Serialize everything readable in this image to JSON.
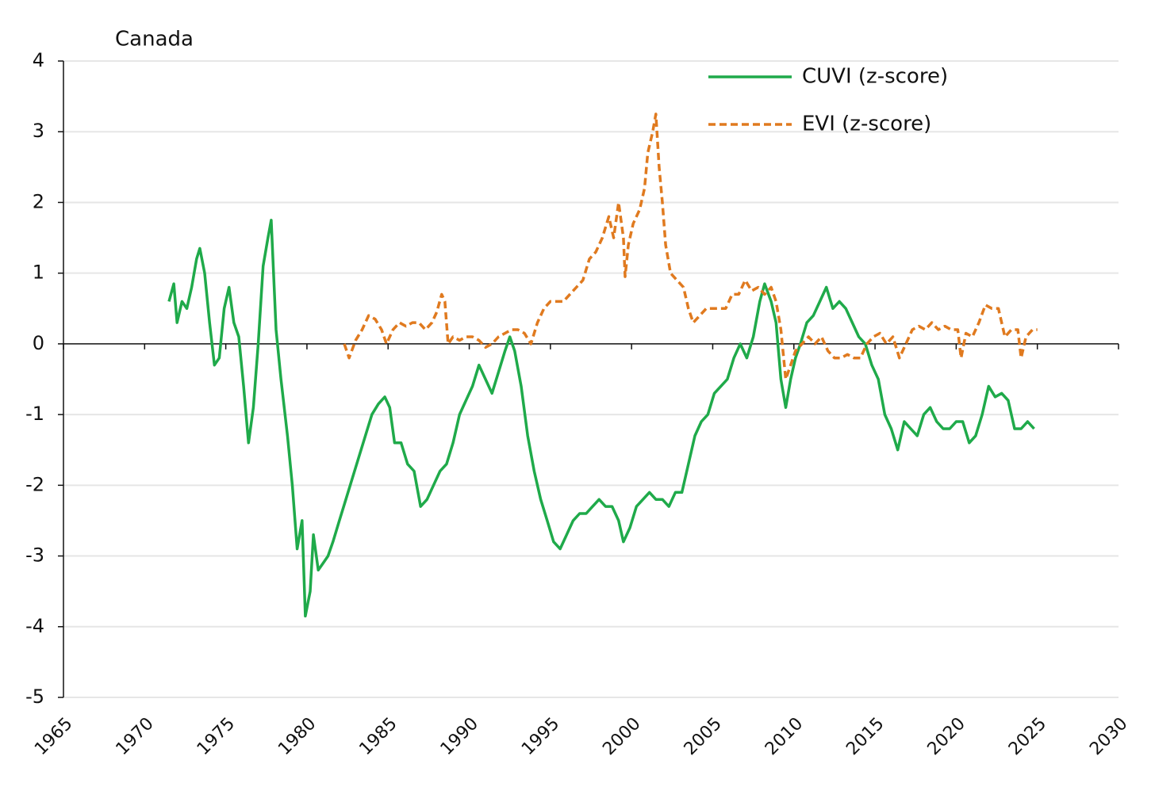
{
  "chart_data": {
    "type": "line",
    "title": "Canada",
    "xlim": [
      1965,
      2030
    ],
    "xticks": [
      1965,
      1970,
      1975,
      1980,
      1985,
      1990,
      1995,
      2000,
      2005,
      2010,
      2015,
      2020,
      2025,
      2030
    ],
    "ylim": [
      -5,
      4
    ],
    "yticks": [
      4,
      3,
      2,
      1,
      0,
      -1,
      -2,
      -3,
      -4,
      -5
    ],
    "grid": true,
    "legend": "top-right",
    "series": [
      {
        "name": "CUVI (z-score)",
        "color": "#1faa4a",
        "dash": false,
        "x": [
          1971.5,
          1971.8,
          1972.0,
          1972.3,
          1972.6,
          1972.9,
          1973.2,
          1973.4,
          1973.7,
          1974.0,
          1974.3,
          1974.6,
          1974.9,
          1975.2,
          1975.5,
          1975.8,
          1976.1,
          1976.4,
          1976.7,
          1977.0,
          1977.3,
          1977.6,
          1977.8,
          1978.1,
          1978.4,
          1978.8,
          1979.1,
          1979.4,
          1979.7,
          1979.9,
          1980.2,
          1980.4,
          1980.7,
          1981.0,
          1981.3,
          1981.6,
          1982.0,
          1982.4,
          1982.8,
          1983.2,
          1983.6,
          1984.0,
          1984.4,
          1984.8,
          1985.1,
          1985.4,
          1985.8,
          1986.2,
          1986.6,
          1987.0,
          1987.4,
          1987.8,
          1988.2,
          1988.6,
          1989.0,
          1989.4,
          1989.8,
          1990.2,
          1990.6,
          1991.0,
          1991.4,
          1991.8,
          1992.2,
          1992.5,
          1992.8,
          1993.2,
          1993.6,
          1994.0,
          1994.4,
          1994.8,
          1995.2,
          1995.6,
          1996.0,
          1996.4,
          1996.8,
          1997.2,
          1997.6,
          1998.0,
          1998.4,
          1998.8,
          1999.2,
          1999.5,
          1999.9,
          2000.3,
          2000.7,
          2001.1,
          2001.5,
          2001.9,
          2002.3,
          2002.7,
          2003.1,
          2003.5,
          2003.9,
          2004.3,
          2004.7,
          2005.1,
          2005.5,
          2005.9,
          2006.3,
          2006.7,
          2007.1,
          2007.5,
          2007.9,
          2008.2,
          2008.6,
          2008.9,
          2009.2,
          2009.5,
          2009.8,
          2010.1,
          2010.4,
          2010.8,
          2011.2,
          2011.6,
          2012.0,
          2012.4,
          2012.8,
          2013.2,
          2013.6,
          2014.0,
          2014.4,
          2014.8,
          2015.2,
          2015.6,
          2016.0,
          2016.4,
          2016.8,
          2017.2,
          2017.6,
          2018.0,
          2018.4,
          2018.8,
          2019.2,
          2019.6,
          2020.0,
          2020.4,
          2020.8,
          2021.2,
          2021.6,
          2022.0,
          2022.4,
          2022.8,
          2023.2,
          2023.6,
          2024.0,
          2024.4,
          2024.8
        ],
        "values": [
          0.6,
          0.85,
          0.3,
          0.6,
          0.5,
          0.8,
          1.2,
          1.35,
          1.0,
          0.3,
          -0.3,
          -0.2,
          0.5,
          0.8,
          0.3,
          0.1,
          -0.6,
          -1.4,
          -0.9,
          0.0,
          1.1,
          1.5,
          1.75,
          0.2,
          -0.5,
          -1.3,
          -2.0,
          -2.9,
          -2.5,
          -3.85,
          -3.5,
          -2.7,
          -3.2,
          -3.1,
          -3.0,
          -2.8,
          -2.5,
          -2.2,
          -1.9,
          -1.6,
          -1.3,
          -1.0,
          -0.85,
          -0.75,
          -0.9,
          -1.4,
          -1.4,
          -1.7,
          -1.8,
          -2.3,
          -2.2,
          -2.0,
          -1.8,
          -1.7,
          -1.4,
          -1.0,
          -0.8,
          -0.6,
          -0.3,
          -0.5,
          -0.7,
          -0.4,
          -0.1,
          0.1,
          -0.1,
          -0.6,
          -1.3,
          -1.8,
          -2.2,
          -2.5,
          -2.8,
          -2.9,
          -2.7,
          -2.5,
          -2.4,
          -2.4,
          -2.3,
          -2.2,
          -2.3,
          -2.3,
          -2.5,
          -2.8,
          -2.6,
          -2.3,
          -2.2,
          -2.1,
          -2.2,
          -2.2,
          -2.3,
          -2.1,
          -2.1,
          -1.7,
          -1.3,
          -1.1,
          -1.0,
          -0.7,
          -0.6,
          -0.5,
          -0.2,
          0.0,
          -0.2,
          0.1,
          0.6,
          0.85,
          0.6,
          0.3,
          -0.5,
          -0.9,
          -0.5,
          -0.2,
          0.0,
          0.3,
          0.4,
          0.6,
          0.8,
          0.5,
          0.6,
          0.5,
          0.3,
          0.1,
          0.0,
          -0.3,
          -0.5,
          -1.0,
          -1.2,
          -1.5,
          -1.1,
          -1.2,
          -1.3,
          -1.0,
          -0.9,
          -1.1,
          -1.2,
          -1.2,
          -1.1,
          -1.1,
          -1.4,
          -1.3,
          -1.0,
          -0.6,
          -0.75,
          -0.7,
          -0.8,
          -1.2,
          -1.2,
          -1.1,
          -1.2
        ]
      },
      {
        "name": "EVI (z-score)",
        "color": "#e07a1f",
        "dash": true,
        "x": [
          1982.3,
          1982.6,
          1983.0,
          1983.4,
          1983.8,
          1984.2,
          1984.6,
          1984.9,
          1985.3,
          1985.7,
          1986.1,
          1986.5,
          1986.9,
          1987.3,
          1987.7,
          1988.0,
          1988.3,
          1988.5,
          1988.7,
          1989.0,
          1989.4,
          1989.8,
          1990.2,
          1990.6,
          1991.0,
          1991.4,
          1991.8,
          1992.2,
          1992.6,
          1993.0,
          1993.4,
          1993.8,
          1994.2,
          1994.6,
          1995.0,
          1995.4,
          1995.8,
          1996.2,
          1996.6,
          1997.0,
          1997.4,
          1997.8,
          1998.2,
          1998.6,
          1998.9,
          1999.2,
          1999.5,
          1999.6,
          1999.8,
          2000.1,
          2000.5,
          2000.8,
          2001.0,
          2001.3,
          2001.5,
          2001.7,
          2001.9,
          2002.1,
          2002.4,
          2002.8,
          2003.2,
          2003.5,
          2003.8,
          2004.2,
          2004.6,
          2005.0,
          2005.4,
          2005.8,
          2006.2,
          2006.6,
          2007.0,
          2007.4,
          2007.8,
          2008.2,
          2008.6,
          2008.9,
          2009.2,
          2009.5,
          2009.8,
          2010.1,
          2010.5,
          2010.9,
          2011.3,
          2011.7,
          2012.1,
          2012.5,
          2012.9,
          2013.3,
          2013.7,
          2014.1,
          2014.5,
          2014.9,
          2015.3,
          2015.7,
          2016.1,
          2016.5,
          2016.9,
          2017.3,
          2017.7,
          2018.1,
          2018.5,
          2018.9,
          2019.3,
          2019.7,
          2020.1,
          2020.3,
          2020.6,
          2021.0,
          2021.4,
          2021.8,
          2022.2,
          2022.6,
          2023.0,
          2023.4,
          2023.8,
          2024.0,
          2024.3,
          2024.7,
          2025.0
        ],
        "values": [
          0.0,
          -0.2,
          0.05,
          0.2,
          0.4,
          0.35,
          0.2,
          0.0,
          0.2,
          0.3,
          0.25,
          0.3,
          0.3,
          0.2,
          0.3,
          0.45,
          0.7,
          0.6,
          0.0,
          0.1,
          0.05,
          0.1,
          0.1,
          0.05,
          -0.05,
          0.0,
          0.1,
          0.15,
          0.2,
          0.2,
          0.15,
          0.0,
          0.3,
          0.5,
          0.6,
          0.6,
          0.6,
          0.7,
          0.8,
          0.9,
          1.2,
          1.3,
          1.5,
          1.8,
          1.5,
          2.0,
          1.5,
          0.95,
          1.4,
          1.7,
          1.9,
          2.2,
          2.7,
          3.0,
          3.25,
          2.5,
          2.0,
          1.4,
          1.0,
          0.9,
          0.8,
          0.5,
          0.3,
          0.4,
          0.5,
          0.5,
          0.5,
          0.5,
          0.7,
          0.7,
          0.9,
          0.75,
          0.8,
          0.7,
          0.8,
          0.6,
          0.2,
          -0.5,
          -0.3,
          -0.1,
          0.0,
          0.1,
          0.0,
          0.1,
          -0.1,
          -0.2,
          -0.2,
          -0.15,
          -0.2,
          -0.2,
          0.0,
          0.1,
          0.15,
          0.0,
          0.1,
          -0.2,
          0.0,
          0.2,
          0.25,
          0.2,
          0.3,
          0.2,
          0.25,
          0.2,
          0.2,
          -0.2,
          0.15,
          0.1,
          0.3,
          0.55,
          0.5,
          0.5,
          0.1,
          0.2,
          0.2,
          -0.2,
          0.1,
          0.2,
          0.2
        ]
      }
    ]
  }
}
